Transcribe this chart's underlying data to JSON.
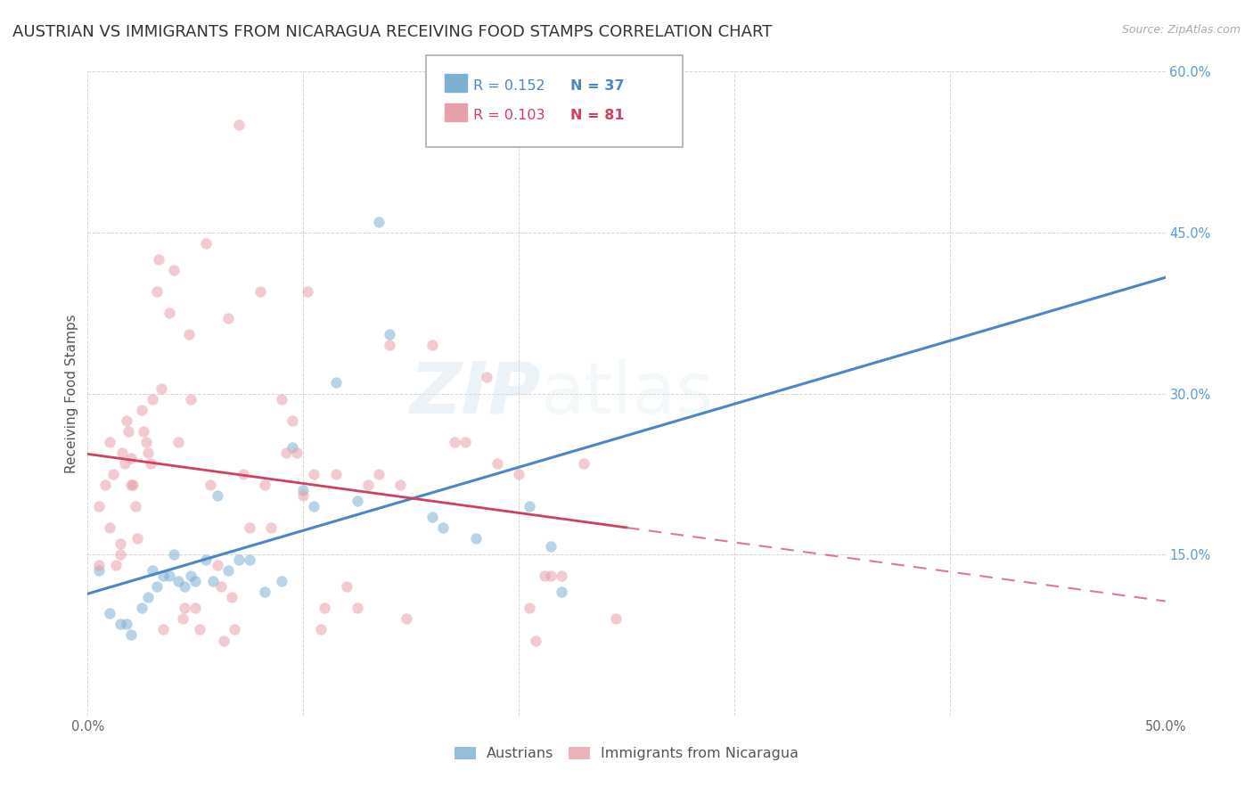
{
  "title": "AUSTRIAN VS IMMIGRANTS FROM NICARAGUA RECEIVING FOOD STAMPS CORRELATION CHART",
  "source": "Source: ZipAtlas.com",
  "ylabel": "Receiving Food Stamps",
  "xlim": [
    0.0,
    0.5
  ],
  "ylim": [
    0.0,
    0.6
  ],
  "xticks": [
    0.0,
    0.1,
    0.2,
    0.3,
    0.4,
    0.5
  ],
  "yticks": [
    0.0,
    0.15,
    0.3,
    0.45,
    0.6
  ],
  "xticklabels": [
    "0.0%",
    "",
    "",
    "",
    "",
    "50.0%"
  ],
  "left_yticklabels": [
    "",
    "",
    "",
    "",
    ""
  ],
  "right_yticklabels": [
    "",
    "15.0%",
    "30.0%",
    "45.0%",
    "60.0%"
  ],
  "legend_r_blue": "R = 0.152",
  "legend_n_blue": "N = 37",
  "legend_r_pink": "R = 0.103",
  "legend_n_pink": "N = 81",
  "blue_color": "#7bafd4",
  "pink_color": "#e8a0a8",
  "trend_blue_color": "#4a86c8",
  "trend_pink_color": "#d04060",
  "trend_blue_start": 0.135,
  "trend_blue_end": 0.225,
  "trend_pink_start": 0.215,
  "trend_pink_end": 0.275,
  "trend_pink_dashed_start": 0.275,
  "trend_pink_dashed_end": 0.335,
  "blue_scatter": [
    [
      0.005,
      0.135
    ],
    [
      0.01,
      0.095
    ],
    [
      0.015,
      0.085
    ],
    [
      0.018,
      0.085
    ],
    [
      0.02,
      0.075
    ],
    [
      0.025,
      0.1
    ],
    [
      0.028,
      0.11
    ],
    [
      0.03,
      0.135
    ],
    [
      0.032,
      0.12
    ],
    [
      0.035,
      0.13
    ],
    [
      0.038,
      0.13
    ],
    [
      0.04,
      0.15
    ],
    [
      0.042,
      0.125
    ],
    [
      0.045,
      0.12
    ],
    [
      0.048,
      0.13
    ],
    [
      0.05,
      0.125
    ],
    [
      0.055,
      0.145
    ],
    [
      0.058,
      0.125
    ],
    [
      0.06,
      0.205
    ],
    [
      0.065,
      0.135
    ],
    [
      0.07,
      0.145
    ],
    [
      0.075,
      0.145
    ],
    [
      0.082,
      0.115
    ],
    [
      0.09,
      0.125
    ],
    [
      0.095,
      0.25
    ],
    [
      0.1,
      0.21
    ],
    [
      0.105,
      0.195
    ],
    [
      0.115,
      0.31
    ],
    [
      0.125,
      0.2
    ],
    [
      0.135,
      0.46
    ],
    [
      0.14,
      0.355
    ],
    [
      0.16,
      0.185
    ],
    [
      0.165,
      0.175
    ],
    [
      0.18,
      0.165
    ],
    [
      0.205,
      0.195
    ],
    [
      0.215,
      0.158
    ],
    [
      0.22,
      0.115
    ]
  ],
  "pink_scatter": [
    [
      0.005,
      0.14
    ],
    [
      0.005,
      0.195
    ],
    [
      0.008,
      0.215
    ],
    [
      0.01,
      0.175
    ],
    [
      0.01,
      0.255
    ],
    [
      0.012,
      0.225
    ],
    [
      0.013,
      0.14
    ],
    [
      0.015,
      0.16
    ],
    [
      0.015,
      0.15
    ],
    [
      0.016,
      0.245
    ],
    [
      0.017,
      0.235
    ],
    [
      0.018,
      0.275
    ],
    [
      0.019,
      0.265
    ],
    [
      0.02,
      0.24
    ],
    [
      0.02,
      0.215
    ],
    [
      0.021,
      0.215
    ],
    [
      0.022,
      0.195
    ],
    [
      0.023,
      0.165
    ],
    [
      0.025,
      0.285
    ],
    [
      0.026,
      0.265
    ],
    [
      0.027,
      0.255
    ],
    [
      0.028,
      0.245
    ],
    [
      0.029,
      0.235
    ],
    [
      0.03,
      0.295
    ],
    [
      0.032,
      0.395
    ],
    [
      0.033,
      0.425
    ],
    [
      0.034,
      0.305
    ],
    [
      0.035,
      0.08
    ],
    [
      0.038,
      0.375
    ],
    [
      0.04,
      0.415
    ],
    [
      0.042,
      0.255
    ],
    [
      0.044,
      0.09
    ],
    [
      0.045,
      0.1
    ],
    [
      0.047,
      0.355
    ],
    [
      0.048,
      0.295
    ],
    [
      0.05,
      0.1
    ],
    [
      0.052,
      0.08
    ],
    [
      0.055,
      0.44
    ],
    [
      0.057,
      0.215
    ],
    [
      0.06,
      0.14
    ],
    [
      0.062,
      0.12
    ],
    [
      0.063,
      0.07
    ],
    [
      0.065,
      0.37
    ],
    [
      0.067,
      0.11
    ],
    [
      0.068,
      0.08
    ],
    [
      0.07,
      0.55
    ],
    [
      0.072,
      0.225
    ],
    [
      0.075,
      0.175
    ],
    [
      0.08,
      0.395
    ],
    [
      0.082,
      0.215
    ],
    [
      0.085,
      0.175
    ],
    [
      0.09,
      0.295
    ],
    [
      0.092,
      0.245
    ],
    [
      0.095,
      0.275
    ],
    [
      0.097,
      0.245
    ],
    [
      0.1,
      0.205
    ],
    [
      0.102,
      0.395
    ],
    [
      0.105,
      0.225
    ],
    [
      0.108,
      0.08
    ],
    [
      0.11,
      0.1
    ],
    [
      0.115,
      0.225
    ],
    [
      0.12,
      0.12
    ],
    [
      0.125,
      0.1
    ],
    [
      0.13,
      0.215
    ],
    [
      0.135,
      0.225
    ],
    [
      0.14,
      0.345
    ],
    [
      0.145,
      0.215
    ],
    [
      0.148,
      0.09
    ],
    [
      0.16,
      0.345
    ],
    [
      0.17,
      0.255
    ],
    [
      0.175,
      0.255
    ],
    [
      0.185,
      0.315
    ],
    [
      0.19,
      0.235
    ],
    [
      0.2,
      0.225
    ],
    [
      0.205,
      0.1
    ],
    [
      0.208,
      0.07
    ],
    [
      0.212,
      0.13
    ],
    [
      0.215,
      0.13
    ],
    [
      0.22,
      0.13
    ],
    [
      0.23,
      0.235
    ],
    [
      0.245,
      0.09
    ]
  ],
  "background_color": "#ffffff",
  "grid_color": "#cccccc",
  "right_tick_color": "#5b9bd5",
  "title_fontsize": 13,
  "axis_label_fontsize": 11,
  "tick_fontsize": 10.5,
  "marker_size": 80,
  "marker_alpha": 0.55,
  "watermark_zip": "ZIP",
  "watermark_atlas": "atlas",
  "watermark_color": "#c8dff0",
  "watermark_alpha": 0.35
}
